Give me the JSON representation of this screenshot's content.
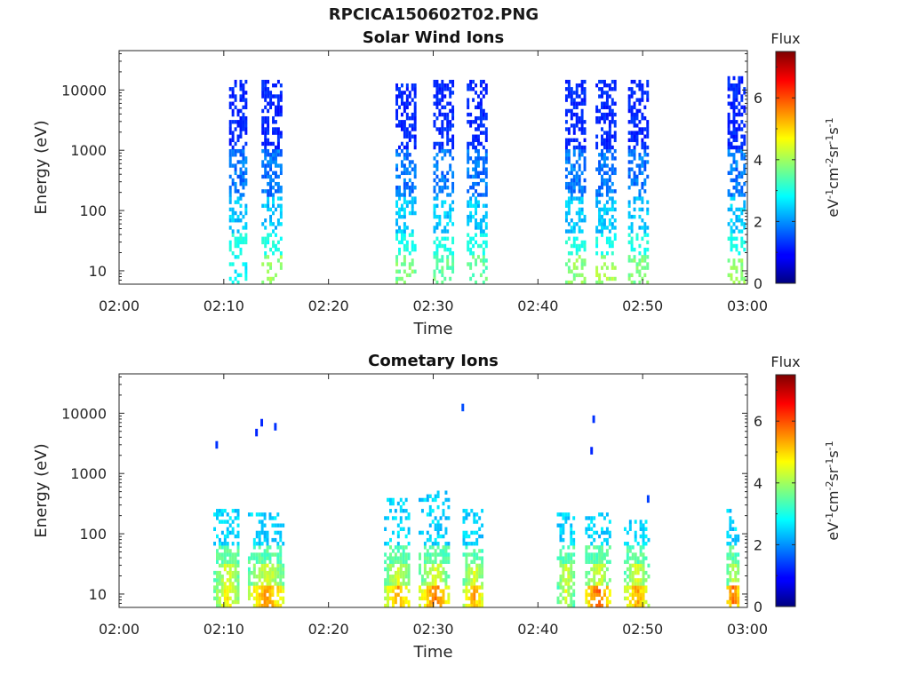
{
  "figure": {
    "title": "RPCICA150602T02.PNG"
  },
  "chart_data": [
    {
      "type": "heatmap",
      "title": "Solar Wind Ions",
      "xlabel": "Time",
      "ylabel": "Energy (eV)",
      "x_tick_labels": [
        "02:00",
        "02:10",
        "02:20",
        "02:30",
        "02:40",
        "02:50",
        "03:00"
      ],
      "x_tick_minutes": [
        0,
        10,
        20,
        30,
        40,
        50,
        60
      ],
      "xlim_minutes": [
        0,
        60
      ],
      "y_scale": "log",
      "ylim": [
        6,
        45000
      ],
      "y_tick_labels": [
        "10",
        "100",
        "1000",
        "10000"
      ],
      "y_tick_values": [
        10,
        100,
        1000,
        10000
      ],
      "colorbar": {
        "title": "Flux",
        "label": "eV-1cm-2sr-1s-1",
        "colormap": "jet",
        "range": [
          0,
          7.5
        ],
        "tick_labels": [
          "0",
          "2",
          "4",
          "6"
        ],
        "tick_values": [
          0,
          2,
          4,
          6
        ]
      },
      "bursts": [
        {
          "start_min": 10.5,
          "end_min": 12.2,
          "emax_ev": 13000,
          "low_flux": 2.5
        },
        {
          "start_min": 13.6,
          "end_min": 15.4,
          "emax_ev": 14000,
          "low_flux": 3.6
        },
        {
          "start_min": 26.4,
          "end_min": 28.2,
          "emax_ev": 12000,
          "low_flux": 3.4
        },
        {
          "start_min": 30.0,
          "end_min": 31.8,
          "emax_ev": 13000,
          "low_flux": 3.2
        },
        {
          "start_min": 33.2,
          "end_min": 35.0,
          "emax_ev": 14000,
          "low_flux": 3.2
        },
        {
          "start_min": 42.6,
          "end_min": 44.5,
          "emax_ev": 14000,
          "low_flux": 3.5
        },
        {
          "start_min": 45.5,
          "end_min": 47.4,
          "emax_ev": 14000,
          "low_flux": 3.7
        },
        {
          "start_min": 48.6,
          "end_min": 50.6,
          "emax_ev": 14000,
          "low_flux": 3.4
        },
        {
          "start_min": 58.1,
          "end_min": 59.8,
          "emax_ev": 15000,
          "low_flux": 3.6
        }
      ]
    },
    {
      "type": "heatmap",
      "title": "Cometary Ions",
      "xlabel": "Time",
      "ylabel": "Energy (eV)",
      "x_tick_labels": [
        "02:00",
        "02:10",
        "02:20",
        "02:30",
        "02:40",
        "02:50",
        "03:00"
      ],
      "x_tick_minutes": [
        0,
        10,
        20,
        30,
        40,
        50,
        60
      ],
      "xlim_minutes": [
        0,
        60
      ],
      "y_scale": "log",
      "ylim": [
        6,
        45000
      ],
      "y_tick_labels": [
        "10",
        "100",
        "1000",
        "10000"
      ],
      "y_tick_values": [
        10,
        100,
        1000,
        10000
      ],
      "colorbar": {
        "title": "Flux",
        "label": "eV-1cm-2sr-1s-1",
        "colormap": "jet",
        "range": [
          0,
          7.5
        ],
        "tick_labels": [
          "0",
          "2",
          "4",
          "6"
        ],
        "tick_values": [
          0,
          2,
          4,
          6
        ]
      },
      "bursts": [
        {
          "start_min": 9.0,
          "end_min": 11.5,
          "emax_ev": 250,
          "peak_flux": 4.9
        },
        {
          "start_min": 12.3,
          "end_min": 15.8,
          "emax_ev": 200,
          "peak_flux": 5.6
        },
        {
          "start_min": 25.3,
          "end_min": 27.8,
          "emax_ev": 350,
          "peak_flux": 5.5
        },
        {
          "start_min": 28.6,
          "end_min": 31.6,
          "emax_ev": 500,
          "peak_flux": 5.7
        },
        {
          "start_min": 32.8,
          "end_min": 34.8,
          "emax_ev": 250,
          "peak_flux": 5.4
        },
        {
          "start_min": 41.8,
          "end_min": 43.4,
          "emax_ev": 200,
          "peak_flux": 4.6
        },
        {
          "start_min": 44.5,
          "end_min": 46.8,
          "emax_ev": 200,
          "peak_flux": 6.0
        },
        {
          "start_min": 48.2,
          "end_min": 50.5,
          "emax_ev": 160,
          "peak_flux": 5.5
        },
        {
          "start_min": 58.0,
          "end_min": 59.2,
          "emax_ev": 250,
          "peak_flux": 6.0
        }
      ],
      "isolated_points": [
        {
          "min": 9.2,
          "ev": 3000,
          "flux": 1.3
        },
        {
          "min": 13.0,
          "ev": 4800,
          "flux": 1.2
        },
        {
          "min": 13.5,
          "ev": 7000,
          "flux": 1.2
        },
        {
          "min": 14.8,
          "ev": 6000,
          "flux": 1.3
        },
        {
          "min": 32.7,
          "ev": 12500,
          "flux": 1.5
        },
        {
          "min": 45.2,
          "ev": 8000,
          "flux": 1.3
        },
        {
          "min": 45.0,
          "ev": 2400,
          "flux": 1.2
        },
        {
          "min": 50.4,
          "ev": 380,
          "flux": 1.4
        }
      ]
    }
  ]
}
